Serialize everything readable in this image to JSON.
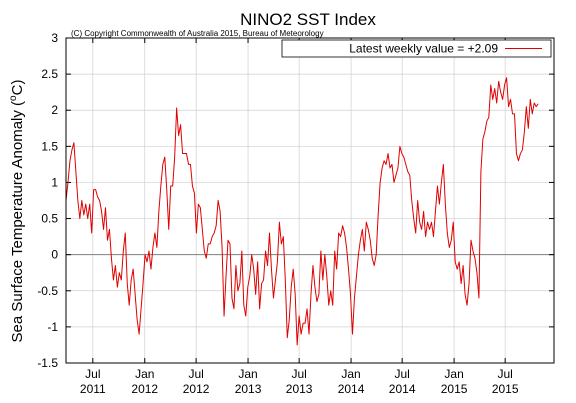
{
  "chart_data": {
    "type": "line",
    "title": "NINO2 SST Index",
    "subtitle": "(C) Copyright Commonwealth of Australia 2015, Bureau of Meteorology",
    "ylabel": "Sea Surface Temperature Anomaly (°C)",
    "ylabel_parts": {
      "main": "Sea Surface Temperature Anomaly (",
      "sup_o": "o",
      "unit": "C",
      "close": ")"
    },
    "xlabel": "",
    "ylim": [
      -1.5,
      3
    ],
    "y_ticks": [
      -1.5,
      -1,
      -0.5,
      0,
      0.5,
      1,
      1.5,
      2,
      2.5,
      3
    ],
    "y_tick_labels": [
      "-1.5",
      "-1",
      "-0.5",
      "0",
      "0.5",
      "1",
      "1.5",
      "2",
      "2.5",
      "3"
    ],
    "xlim": [
      "2011-03-28",
      "2015-12-21"
    ],
    "x_ticks": [
      {
        "date": "2011-07-01",
        "month": "Jul",
        "year": "2011"
      },
      {
        "date": "2012-01-01",
        "month": "Jan",
        "year": "2012"
      },
      {
        "date": "2012-07-01",
        "month": "Jul",
        "year": "2012"
      },
      {
        "date": "2013-01-01",
        "month": "Jan",
        "year": "2013"
      },
      {
        "date": "2013-07-01",
        "month": "Jul",
        "year": "2013"
      },
      {
        "date": "2014-01-01",
        "month": "Jan",
        "year": "2014"
      },
      {
        "date": "2014-07-01",
        "month": "Jul",
        "year": "2014"
      },
      {
        "date": "2015-01-01",
        "month": "Jan",
        "year": "2015"
      },
      {
        "date": "2015-07-01",
        "month": "Jul",
        "year": "2015"
      }
    ],
    "zero_line": true,
    "grid": true,
    "legend": {
      "position": "top-right",
      "label": "Latest weekly value = +2.09"
    },
    "series": [
      {
        "name": "Latest weekly value = +2.09",
        "color": "#e00000",
        "points": [
          [
            "2011-03-28",
            0.75
          ],
          [
            "2011-04-04",
            1.0
          ],
          [
            "2011-04-11",
            1.3
          ],
          [
            "2011-04-18",
            1.45
          ],
          [
            "2011-04-25",
            1.55
          ],
          [
            "2011-05-02",
            1.15
          ],
          [
            "2011-05-09",
            0.75
          ],
          [
            "2011-05-16",
            0.5
          ],
          [
            "2011-05-23",
            0.75
          ],
          [
            "2011-05-30",
            0.55
          ],
          [
            "2011-06-06",
            0.7
          ],
          [
            "2011-06-13",
            0.5
          ],
          [
            "2011-06-20",
            0.7
          ],
          [
            "2011-06-27",
            0.3
          ],
          [
            "2011-07-04",
            0.9
          ],
          [
            "2011-07-11",
            0.9
          ],
          [
            "2011-07-18",
            0.8
          ],
          [
            "2011-07-25",
            0.75
          ],
          [
            "2011-08-01",
            0.6
          ],
          [
            "2011-08-08",
            0.35
          ],
          [
            "2011-08-15",
            0.65
          ],
          [
            "2011-08-22",
            0.2
          ],
          [
            "2011-08-29",
            0.35
          ],
          [
            "2011-09-05",
            -0.05
          ],
          [
            "2011-09-12",
            -0.35
          ],
          [
            "2011-09-19",
            -0.15
          ],
          [
            "2011-09-26",
            -0.45
          ],
          [
            "2011-10-03",
            -0.25
          ],
          [
            "2011-10-10",
            -0.35
          ],
          [
            "2011-10-17",
            0.05
          ],
          [
            "2011-10-24",
            0.3
          ],
          [
            "2011-10-31",
            -0.4
          ],
          [
            "2011-11-07",
            -0.7
          ],
          [
            "2011-11-14",
            -0.35
          ],
          [
            "2011-11-21",
            -0.2
          ],
          [
            "2011-11-28",
            -0.55
          ],
          [
            "2011-12-05",
            -0.9
          ],
          [
            "2011-12-12",
            -1.1
          ],
          [
            "2011-12-19",
            -0.75
          ],
          [
            "2011-12-26",
            -0.4
          ],
          [
            "2012-01-02",
            0.0
          ],
          [
            "2012-01-09",
            -0.1
          ],
          [
            "2012-01-16",
            0.05
          ],
          [
            "2012-01-23",
            -0.2
          ],
          [
            "2012-01-30",
            0.1
          ],
          [
            "2012-02-06",
            0.3
          ],
          [
            "2012-02-13",
            0.1
          ],
          [
            "2012-02-20",
            0.6
          ],
          [
            "2012-02-27",
            0.95
          ],
          [
            "2012-03-05",
            1.25
          ],
          [
            "2012-03-12",
            1.35
          ],
          [
            "2012-03-19",
            0.9
          ],
          [
            "2012-03-26",
            0.35
          ],
          [
            "2012-04-02",
            0.95
          ],
          [
            "2012-04-09",
            0.95
          ],
          [
            "2012-04-16",
            1.35
          ],
          [
            "2012-04-23",
            2.03
          ],
          [
            "2012-04-30",
            1.65
          ],
          [
            "2012-05-07",
            1.8
          ],
          [
            "2012-05-14",
            1.4
          ],
          [
            "2012-05-21",
            1.4
          ],
          [
            "2012-05-28",
            1.4
          ],
          [
            "2012-06-04",
            1.25
          ],
          [
            "2012-06-11",
            1.25
          ],
          [
            "2012-06-18",
            0.95
          ],
          [
            "2012-06-25",
            0.85
          ],
          [
            "2012-07-02",
            0.3
          ],
          [
            "2012-07-09",
            0.7
          ],
          [
            "2012-07-16",
            0.65
          ],
          [
            "2012-07-23",
            0.35
          ],
          [
            "2012-07-30",
            0.05
          ],
          [
            "2012-08-06",
            -0.05
          ],
          [
            "2012-08-13",
            0.15
          ],
          [
            "2012-08-20",
            0.15
          ],
          [
            "2012-08-27",
            0.25
          ],
          [
            "2012-09-03",
            0.3
          ],
          [
            "2012-09-10",
            0.4
          ],
          [
            "2012-09-17",
            0.75
          ],
          [
            "2012-09-24",
            0.6
          ],
          [
            "2012-10-01",
            0.1
          ],
          [
            "2012-10-08",
            -0.85
          ],
          [
            "2012-10-15",
            -0.3
          ],
          [
            "2012-10-22",
            0.2
          ],
          [
            "2012-10-29",
            0.15
          ],
          [
            "2012-11-05",
            -0.6
          ],
          [
            "2012-11-12",
            -0.75
          ],
          [
            "2012-11-19",
            -0.15
          ],
          [
            "2012-11-26",
            -0.5
          ],
          [
            "2012-12-03",
            -0.4
          ],
          [
            "2012-12-10",
            0.05
          ],
          [
            "2012-12-17",
            -0.7
          ],
          [
            "2012-12-24",
            -0.85
          ],
          [
            "2012-12-31",
            -0.45
          ],
          [
            "2013-01-07",
            -0.3
          ],
          [
            "2013-01-14",
            0.0
          ],
          [
            "2013-01-21",
            -0.2
          ],
          [
            "2013-01-28",
            -0.55
          ],
          [
            "2013-02-04",
            -0.1
          ],
          [
            "2013-02-11",
            -0.75
          ],
          [
            "2013-02-18",
            -0.4
          ],
          [
            "2013-02-25",
            -0.35
          ],
          [
            "2013-03-04",
            0.05
          ],
          [
            "2013-03-11",
            -0.15
          ],
          [
            "2013-03-18",
            0.3
          ],
          [
            "2013-03-25",
            -0.2
          ],
          [
            "2013-04-01",
            -0.6
          ],
          [
            "2013-04-08",
            -0.35
          ],
          [
            "2013-04-15",
            -0.1
          ],
          [
            "2013-04-22",
            0.45
          ],
          [
            "2013-04-29",
            0.15
          ],
          [
            "2013-05-06",
            0.25
          ],
          [
            "2013-05-13",
            -0.35
          ],
          [
            "2013-05-20",
            -1.15
          ],
          [
            "2013-05-27",
            -0.9
          ],
          [
            "2013-06-03",
            -0.45
          ],
          [
            "2013-06-10",
            -0.2
          ],
          [
            "2013-06-17",
            -0.55
          ],
          [
            "2013-06-24",
            -1.25
          ],
          [
            "2013-07-01",
            -0.85
          ],
          [
            "2013-07-08",
            -1.1
          ],
          [
            "2013-07-15",
            -0.95
          ],
          [
            "2013-07-22",
            -0.95
          ],
          [
            "2013-07-29",
            -0.75
          ],
          [
            "2013-08-05",
            -1.1
          ],
          [
            "2013-08-12",
            -0.55
          ],
          [
            "2013-08-19",
            -0.15
          ],
          [
            "2013-08-26",
            -0.45
          ],
          [
            "2013-09-02",
            -0.65
          ],
          [
            "2013-09-09",
            -0.55
          ],
          [
            "2013-09-16",
            0.05
          ],
          [
            "2013-09-23",
            -0.35
          ],
          [
            "2013-09-30",
            0.0
          ],
          [
            "2013-10-07",
            -0.3
          ],
          [
            "2013-10-14",
            -0.7
          ],
          [
            "2013-10-21",
            -0.5
          ],
          [
            "2013-10-28",
            -0.7
          ],
          [
            "2013-11-04",
            0.05
          ],
          [
            "2013-11-11",
            -0.2
          ],
          [
            "2013-11-18",
            0.3
          ],
          [
            "2013-11-25",
            0.25
          ],
          [
            "2013-12-02",
            0.4
          ],
          [
            "2013-12-09",
            0.3
          ],
          [
            "2013-12-16",
            0.1
          ],
          [
            "2013-12-23",
            -0.2
          ],
          [
            "2013-12-30",
            -0.55
          ],
          [
            "2014-01-06",
            -1.1
          ],
          [
            "2014-01-13",
            -0.6
          ],
          [
            "2014-01-20",
            -0.3
          ],
          [
            "2014-01-27",
            0.0
          ],
          [
            "2014-02-03",
            0.2
          ],
          [
            "2014-02-10",
            0.35
          ],
          [
            "2014-02-17",
            0.05
          ],
          [
            "2014-02-24",
            0.45
          ],
          [
            "2014-03-03",
            0.35
          ],
          [
            "2014-03-10",
            0.2
          ],
          [
            "2014-03-17",
            -0.05
          ],
          [
            "2014-03-24",
            -0.15
          ],
          [
            "2014-03-31",
            0.0
          ],
          [
            "2014-04-07",
            0.55
          ],
          [
            "2014-04-14",
            1.0
          ],
          [
            "2014-04-21",
            1.2
          ],
          [
            "2014-04-28",
            1.3
          ],
          [
            "2014-05-05",
            1.25
          ],
          [
            "2014-05-12",
            1.4
          ],
          [
            "2014-05-19",
            1.2
          ],
          [
            "2014-05-26",
            1.25
          ],
          [
            "2014-06-02",
            1.0
          ],
          [
            "2014-06-09",
            1.1
          ],
          [
            "2014-06-16",
            1.2
          ],
          [
            "2014-06-23",
            1.5
          ],
          [
            "2014-06-30",
            1.4
          ],
          [
            "2014-07-07",
            1.35
          ],
          [
            "2014-07-14",
            1.25
          ],
          [
            "2014-07-21",
            1.15
          ],
          [
            "2014-07-28",
            1.1
          ],
          [
            "2014-08-04",
            0.75
          ],
          [
            "2014-08-11",
            0.5
          ],
          [
            "2014-08-18",
            0.3
          ],
          [
            "2014-08-25",
            0.75
          ],
          [
            "2014-09-01",
            0.45
          ],
          [
            "2014-09-08",
            0.35
          ],
          [
            "2014-09-15",
            0.6
          ],
          [
            "2014-09-22",
            0.25
          ],
          [
            "2014-09-29",
            0.45
          ],
          [
            "2014-10-06",
            0.35
          ],
          [
            "2014-10-13",
            0.45
          ],
          [
            "2014-10-20",
            0.25
          ],
          [
            "2014-10-27",
            0.6
          ],
          [
            "2014-11-03",
            0.95
          ],
          [
            "2014-11-10",
            0.7
          ],
          [
            "2014-11-17",
            1.0
          ],
          [
            "2014-11-24",
            1.25
          ],
          [
            "2014-12-01",
            0.7
          ],
          [
            "2014-12-08",
            0.3
          ],
          [
            "2014-12-15",
            0.1
          ],
          [
            "2014-12-22",
            0.2
          ],
          [
            "2014-12-29",
            0.45
          ],
          [
            "2015-01-05",
            -0.1
          ],
          [
            "2015-01-12",
            -0.2
          ],
          [
            "2015-01-19",
            -0.1
          ],
          [
            "2015-01-26",
            -0.4
          ],
          [
            "2015-02-02",
            -0.15
          ],
          [
            "2015-02-09",
            -0.55
          ],
          [
            "2015-02-16",
            -0.7
          ],
          [
            "2015-02-23",
            -0.4
          ],
          [
            "2015-03-02",
            0.2
          ],
          [
            "2015-03-09",
            0.05
          ],
          [
            "2015-03-16",
            -0.05
          ],
          [
            "2015-03-23",
            -0.25
          ],
          [
            "2015-03-30",
            -0.6
          ],
          [
            "2015-04-06",
            1.15
          ],
          [
            "2015-04-13",
            1.6
          ],
          [
            "2015-04-20",
            1.7
          ],
          [
            "2015-04-27",
            1.85
          ],
          [
            "2015-05-04",
            1.9
          ],
          [
            "2015-05-11",
            2.35
          ],
          [
            "2015-05-18",
            2.15
          ],
          [
            "2015-05-25",
            2.3
          ],
          [
            "2015-06-01",
            2.1
          ],
          [
            "2015-06-08",
            2.4
          ],
          [
            "2015-06-15",
            2.25
          ],
          [
            "2015-06-22",
            2.15
          ],
          [
            "2015-06-29",
            2.35
          ],
          [
            "2015-07-06",
            2.45
          ],
          [
            "2015-07-13",
            2.05
          ],
          [
            "2015-07-20",
            2.15
          ],
          [
            "2015-07-27",
            1.95
          ],
          [
            "2015-08-03",
            1.95
          ],
          [
            "2015-08-10",
            1.4
          ],
          [
            "2015-08-17",
            1.3
          ],
          [
            "2015-08-24",
            1.4
          ],
          [
            "2015-08-31",
            1.45
          ],
          [
            "2015-09-07",
            1.7
          ],
          [
            "2015-09-14",
            2.05
          ],
          [
            "2015-09-21",
            1.75
          ],
          [
            "2015-09-28",
            2.15
          ],
          [
            "2015-10-05",
            1.95
          ],
          [
            "2015-10-12",
            2.1
          ],
          [
            "2015-10-19",
            2.05
          ],
          [
            "2015-10-26",
            2.09
          ]
        ]
      }
    ]
  }
}
